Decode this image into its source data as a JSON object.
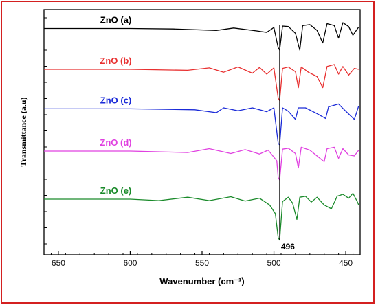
{
  "chart_data": {
    "type": "line",
    "xlabel": "Wavenumber (cm⁻¹)",
    "ylabel": "Transmittance (a.u)",
    "xlim": [
      660,
      440
    ],
    "x_reversed": true,
    "x_ticks": [
      "650",
      "600",
      "550",
      "500",
      "450"
    ],
    "x_tick_values": [
      650,
      600,
      550,
      500,
      450
    ],
    "grid": false,
    "annotation": {
      "text": "496",
      "x": 496
    },
    "series": [
      {
        "name": "ZnO (a)",
        "color": "#000000",
        "baseline": 3.55,
        "points": [
          [
            660,
            0
          ],
          [
            600,
            0
          ],
          [
            570,
            -0.01
          ],
          [
            540,
            -0.04
          ],
          [
            528,
            0.01
          ],
          [
            512,
            -0.05
          ],
          [
            505,
            -0.08
          ],
          [
            500,
            0.02
          ],
          [
            497,
            -0.4
          ],
          [
            496,
            -0.45
          ],
          [
            494,
            0.05
          ],
          [
            490,
            0.04
          ],
          [
            485,
            -0.1
          ],
          [
            482,
            -0.45
          ],
          [
            480,
            0.06
          ],
          [
            475,
            0.08
          ],
          [
            470,
            -0.04
          ],
          [
            466,
            -0.3
          ],
          [
            463,
            0.1
          ],
          [
            458,
            0.06
          ],
          [
            455,
            -0.2
          ],
          [
            452,
            0.12
          ],
          [
            448,
            0.04
          ],
          [
            445,
            -0.14
          ],
          [
            441,
            0.03
          ]
        ]
      },
      {
        "name": "ZnO (b)",
        "color": "#e83030",
        "baseline": 2.7,
        "points": [
          [
            660,
            0
          ],
          [
            600,
            0
          ],
          [
            560,
            -0.02
          ],
          [
            545,
            0.03
          ],
          [
            535,
            -0.06
          ],
          [
            525,
            0.05
          ],
          [
            515,
            -0.08
          ],
          [
            510,
            0.04
          ],
          [
            505,
            -0.1
          ],
          [
            500,
            0.03
          ],
          [
            497,
            -0.6
          ],
          [
            496,
            -0.65
          ],
          [
            494,
            0.02
          ],
          [
            490,
            0.05
          ],
          [
            485,
            -0.05
          ],
          [
            483,
            -0.38
          ],
          [
            481,
            0.05
          ],
          [
            476,
            -0.06
          ],
          [
            470,
            -0.15
          ],
          [
            466,
            -0.38
          ],
          [
            463,
            0.06
          ],
          [
            458,
            0.1
          ],
          [
            455,
            -0.1
          ],
          [
            452,
            0.06
          ],
          [
            448,
            -0.12
          ],
          [
            444,
            0.02
          ],
          [
            441,
            0.0
          ]
        ]
      },
      {
        "name": "ZnO (c)",
        "color": "#1a2ad8",
        "baseline": 1.88,
        "points": [
          [
            660,
            0
          ],
          [
            600,
            0
          ],
          [
            555,
            -0.02
          ],
          [
            540,
            -0.08
          ],
          [
            535,
            0.02
          ],
          [
            525,
            -0.04
          ],
          [
            515,
            0.02
          ],
          [
            505,
            -0.06
          ],
          [
            500,
            0.02
          ],
          [
            497,
            -0.72
          ],
          [
            496,
            -0.75
          ],
          [
            494,
            0.02
          ],
          [
            490,
            -0.05
          ],
          [
            485,
            -0.22
          ],
          [
            483,
            0.02
          ],
          [
            478,
            0.02
          ],
          [
            470,
            -0.1
          ],
          [
            464,
            -0.2
          ],
          [
            462,
            0.04
          ],
          [
            455,
            0.1
          ],
          [
            450,
            -0.05
          ],
          [
            444,
            -0.22
          ],
          [
            441,
            0.06
          ]
        ]
      },
      {
        "name": "ZnO (d)",
        "color": "#e040e0",
        "baseline": 1.0,
        "points": [
          [
            660,
            0
          ],
          [
            600,
            0
          ],
          [
            560,
            -0.03
          ],
          [
            545,
            0.05
          ],
          [
            530,
            -0.05
          ],
          [
            520,
            0.03
          ],
          [
            510,
            -0.06
          ],
          [
            504,
            0.02
          ],
          [
            498,
            -0.2
          ],
          [
            497,
            -0.55
          ],
          [
            496,
            -0.6
          ],
          [
            494,
            0.04
          ],
          [
            490,
            0.06
          ],
          [
            485,
            -0.05
          ],
          [
            483,
            -0.35
          ],
          [
            481,
            0.08
          ],
          [
            475,
            0.02
          ],
          [
            470,
            -0.1
          ],
          [
            465,
            -0.22
          ],
          [
            463,
            0.05
          ],
          [
            458,
            0.08
          ],
          [
            455,
            -0.15
          ],
          [
            452,
            0.05
          ],
          [
            448,
            -0.08
          ],
          [
            444,
            -0.1
          ],
          [
            441,
            0.02
          ]
        ]
      },
      {
        "name": "ZnO (e)",
        "color": "#1a8a2a",
        "baseline": 0.0,
        "points": [
          [
            660,
            0
          ],
          [
            600,
            0
          ],
          [
            580,
            -0.03
          ],
          [
            560,
            0.04
          ],
          [
            545,
            -0.03
          ],
          [
            530,
            0.05
          ],
          [
            520,
            -0.04
          ],
          [
            510,
            0.02
          ],
          [
            503,
            -0.12
          ],
          [
            499,
            -0.3
          ],
          [
            497,
            -0.8
          ],
          [
            496,
            -0.85
          ],
          [
            494,
            -0.05
          ],
          [
            490,
            0.04
          ],
          [
            487,
            -0.08
          ],
          [
            484,
            -0.42
          ],
          [
            482,
            0.04
          ],
          [
            478,
            0.06
          ],
          [
            474,
            -0.06
          ],
          [
            470,
            0.04
          ],
          [
            465,
            -0.12
          ],
          [
            460,
            -0.2
          ],
          [
            456,
            0.06
          ],
          [
            452,
            0.1
          ],
          [
            448,
            0.02
          ],
          [
            445,
            0.12
          ],
          [
            442,
            -0.05
          ],
          [
            441,
            -0.12
          ]
        ]
      }
    ]
  }
}
